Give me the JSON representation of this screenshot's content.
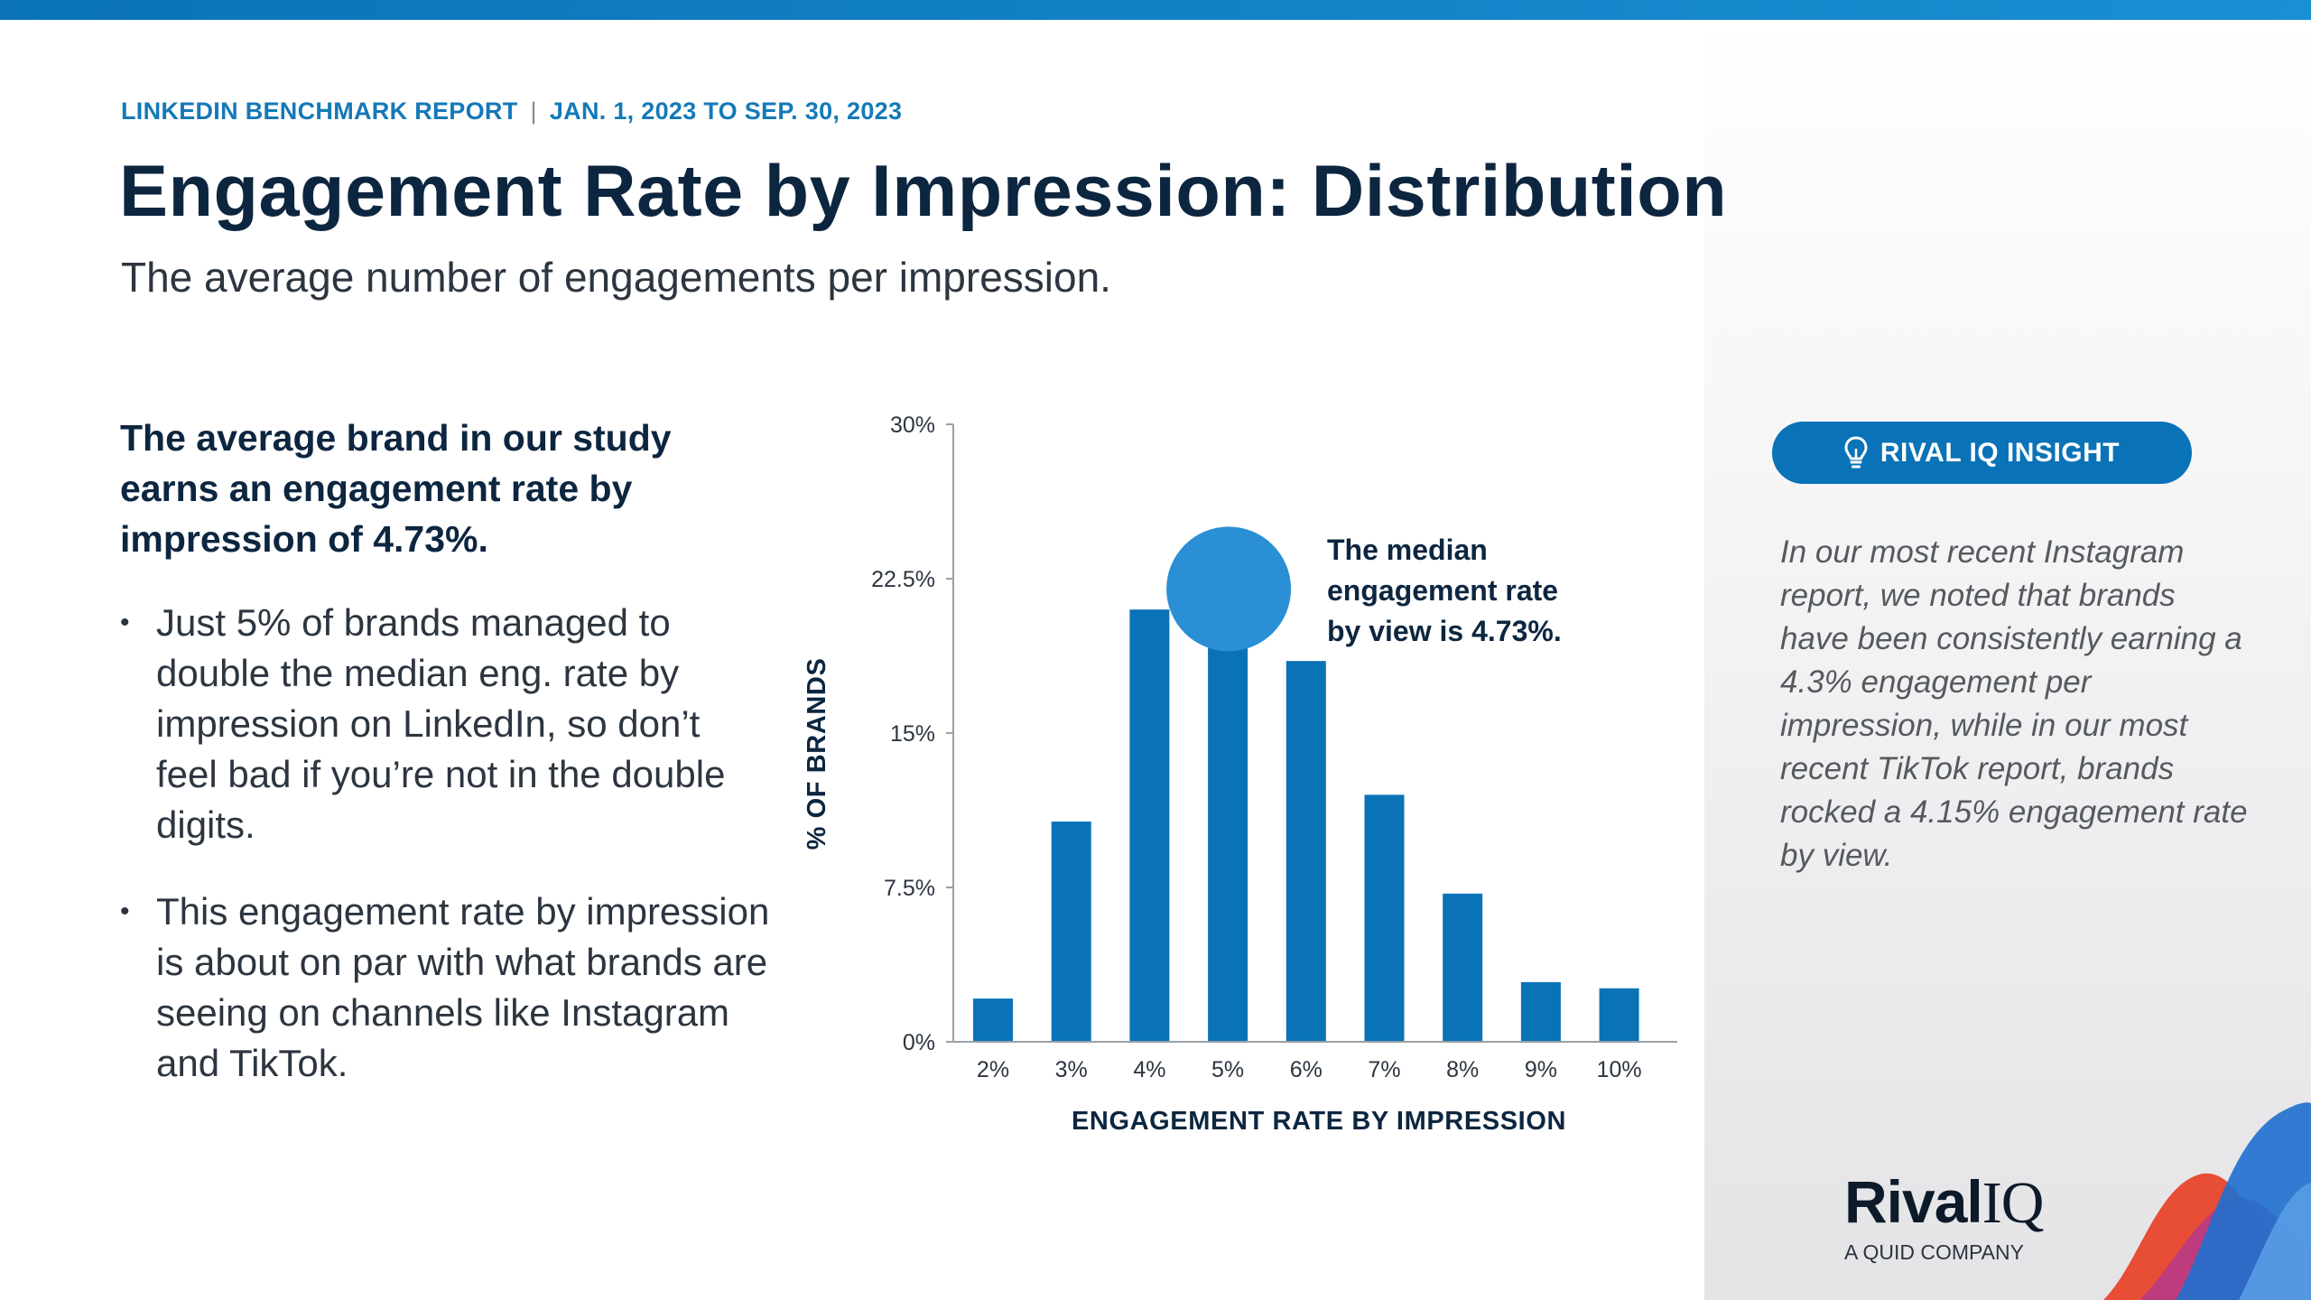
{
  "header": {
    "report_name": "LINKEDIN BENCHMARK REPORT",
    "separator": "|",
    "date_range": "JAN. 1, 2023 TO SEP. 30, 2023",
    "title": "Engagement Rate by Impression: Distribution",
    "subtitle": "The average number of engagements per impression."
  },
  "left": {
    "lead": "The average brand in our study earns an engagement rate by impression of 4.73%.",
    "bullets": [
      "Just 5% of brands managed to double the median eng. rate by impression on LinkedIn, so don’t feel bad if you’re not in the double digits.",
      "This engagement rate by impression is about on par with what brands are seeing on channels like Instagram and TikTok."
    ],
    "bullet_symbol": "•"
  },
  "chart_data": {
    "type": "bar",
    "categories": [
      "2%",
      "3%",
      "4%",
      "5%",
      "6%",
      "7%",
      "8%",
      "9%",
      "10%"
    ],
    "values": [
      2.1,
      10.7,
      21.0,
      19.8,
      18.5,
      12.0,
      7.2,
      2.9,
      2.6
    ],
    "ylim": [
      0,
      30
    ],
    "yticks": [
      0,
      7.5,
      15,
      22.5,
      30
    ],
    "ytick_labels": [
      "0%",
      "7.5%",
      "15%",
      "22.5%",
      "30%"
    ],
    "xlabel": "ENGAGEMENT RATE BY IMPRESSION",
    "ylabel": "% OF BRANDS",
    "annotation": {
      "lines": [
        "The median",
        "engagement rate",
        "by view is 4.73%."
      ],
      "marker_value": 4.73
    },
    "bar_color": "#0a73b8",
    "marker_color": "#2a8fd4"
  },
  "insight": {
    "badge": "RIVAL IQ INSIGHT",
    "icon": "lightbulb-icon",
    "text": "In our most recent Instagram report, we noted that brands have been consistently earning a 4.3% engagement per impression, while in our most recent TikTok report, brands rocked a 4.15% engagement rate by view."
  },
  "logo": {
    "name_part1": "Rival",
    "name_part2": "IQ",
    "tagline": "A QUID COMPANY"
  },
  "colors": {
    "accent": "#0a73b8",
    "title": "#0d2640",
    "body": "#2c3540",
    "insight_text": "#555a60"
  }
}
